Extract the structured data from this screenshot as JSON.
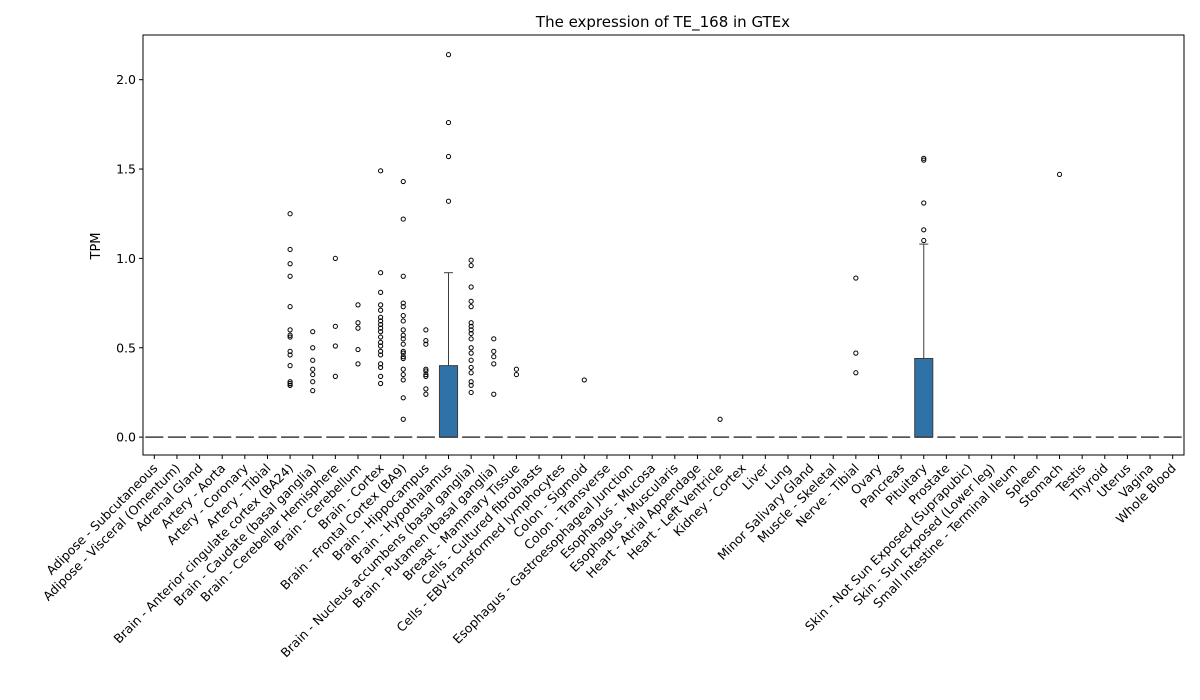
{
  "chart_data": {
    "type": "box",
    "title": "The expression of TE_168 in GTEx",
    "xlabel": "",
    "ylabel": "TPM",
    "ylim": [
      -0.1,
      2.25
    ],
    "yticks": [
      0.0,
      0.5,
      1.0,
      1.5,
      2.0
    ],
    "ytick_labels": [
      "0.0",
      "0.5",
      "1.0",
      "1.5",
      "2.0"
    ],
    "grid": false,
    "box_color": "#2f72a8",
    "categories": [
      "Adipose - Subcutaneous",
      "Adipose - Visceral (Omentum)",
      "Adrenal Gland",
      "Artery - Aorta",
      "Artery - Coronary",
      "Artery - Tibial",
      "Brain - Anterior cingulate cortex (BA24)",
      "Brain - Caudate (basal ganglia)",
      "Brain - Cerebellar Hemisphere",
      "Brain - Cerebellum",
      "Brain - Cortex",
      "Brain - Frontal Cortex (BA9)",
      "Brain - Hippocampus",
      "Brain - Hypothalamus",
      "Brain - Nucleus accumbens (basal ganglia)",
      "Brain - Putamen (basal ganglia)",
      "Breast - Mammary Tissue",
      "Cells - Cultured fibroblasts",
      "Cells - EBV-transformed lymphocytes",
      "Colon - Sigmoid",
      "Colon - Transverse",
      "Esophagus - Gastroesophageal Junction",
      "Esophagus - Mucosa",
      "Esophagus - Muscularis",
      "Heart - Atrial Appendage",
      "Heart - Left Ventricle",
      "Kidney - Cortex",
      "Liver",
      "Lung",
      "Minor Salivary Gland",
      "Muscle - Skeletal",
      "Nerve - Tibial",
      "Ovary",
      "Pancreas",
      "Pituitary",
      "Prostate",
      "Skin - Not Sun Exposed (Suprapubic)",
      "Skin - Sun Exposed (Lower leg)",
      "Small Intestine - Terminal Ileum",
      "Spleen",
      "Stomach",
      "Testis",
      "Thyroid",
      "Uterus",
      "Vagina",
      "Whole Blood"
    ],
    "boxes": [
      {
        "q1": 0,
        "median": 0,
        "q3": 0,
        "whislo": 0,
        "whishi": 0,
        "fliers": []
      },
      {
        "q1": 0,
        "median": 0,
        "q3": 0,
        "whislo": 0,
        "whishi": 0,
        "fliers": []
      },
      {
        "q1": 0,
        "median": 0,
        "q3": 0,
        "whislo": 0,
        "whishi": 0,
        "fliers": []
      },
      {
        "q1": 0,
        "median": 0,
        "q3": 0,
        "whislo": 0,
        "whishi": 0,
        "fliers": []
      },
      {
        "q1": 0,
        "median": 0,
        "q3": 0,
        "whislo": 0,
        "whishi": 0,
        "fliers": []
      },
      {
        "q1": 0,
        "median": 0,
        "q3": 0,
        "whislo": 0,
        "whishi": 0,
        "fliers": []
      },
      {
        "q1": 0,
        "median": 0,
        "q3": 0,
        "whislo": 0,
        "whishi": 0,
        "fliers": [
          1.25,
          1.05,
          0.97,
          0.9,
          0.73,
          0.6,
          0.57,
          0.56,
          0.48,
          0.46,
          0.4,
          0.31,
          0.3,
          0.29,
          0.29
        ]
      },
      {
        "q1": 0,
        "median": 0,
        "q3": 0,
        "whislo": 0,
        "whishi": 0,
        "fliers": [
          0.59,
          0.5,
          0.43,
          0.38,
          0.35,
          0.31,
          0.26
        ]
      },
      {
        "q1": 0,
        "median": 0,
        "q3": 0,
        "whislo": 0,
        "whishi": 0,
        "fliers": [
          1.0,
          0.62,
          0.51,
          0.34
        ]
      },
      {
        "q1": 0,
        "median": 0,
        "q3": 0,
        "whislo": 0,
        "whishi": 0,
        "fliers": [
          0.74,
          0.64,
          0.61,
          0.49,
          0.41
        ]
      },
      {
        "q1": 0,
        "median": 0,
        "q3": 0,
        "whislo": 0,
        "whishi": 0,
        "fliers": [
          1.49,
          0.92,
          0.81,
          0.74,
          0.71,
          0.67,
          0.65,
          0.63,
          0.61,
          0.59,
          0.56,
          0.53,
          0.51,
          0.48,
          0.46,
          0.41,
          0.39,
          0.34,
          0.3
        ]
      },
      {
        "q1": 0,
        "median": 0,
        "q3": 0,
        "whislo": 0,
        "whishi": 0,
        "fliers": [
          1.43,
          1.22,
          0.9,
          0.75,
          0.73,
          0.68,
          0.65,
          0.6,
          0.57,
          0.55,
          0.52,
          0.48,
          0.47,
          0.45,
          0.44,
          0.38,
          0.35,
          0.32,
          0.22,
          0.1
        ]
      },
      {
        "q1": 0,
        "median": 0,
        "q3": 0,
        "whislo": 0,
        "whishi": 0,
        "fliers": [
          0.6,
          0.54,
          0.52,
          0.38,
          0.37,
          0.35,
          0.34,
          0.27,
          0.24
        ]
      },
      {
        "q1": 0,
        "median": 0,
        "q3": 0.4,
        "whislo": 0,
        "whishi": 0.92,
        "fliers": [
          2.14,
          1.76,
          1.57,
          1.32
        ]
      },
      {
        "q1": 0,
        "median": 0,
        "q3": 0,
        "whislo": 0,
        "whishi": 0,
        "fliers": [
          0.99,
          0.96,
          0.84,
          0.76,
          0.73,
          0.64,
          0.62,
          0.6,
          0.58,
          0.55,
          0.5,
          0.47,
          0.43,
          0.39,
          0.36,
          0.31,
          0.29,
          0.25
        ]
      },
      {
        "q1": 0,
        "median": 0,
        "q3": 0,
        "whislo": 0,
        "whishi": 0,
        "fliers": [
          0.55,
          0.48,
          0.45,
          0.41,
          0.24
        ]
      },
      {
        "q1": 0,
        "median": 0,
        "q3": 0,
        "whislo": 0,
        "whishi": 0,
        "fliers": [
          0.38,
          0.35
        ]
      },
      {
        "q1": 0,
        "median": 0,
        "q3": 0,
        "whislo": 0,
        "whishi": 0,
        "fliers": []
      },
      {
        "q1": 0,
        "median": 0,
        "q3": 0,
        "whislo": 0,
        "whishi": 0,
        "fliers": []
      },
      {
        "q1": 0,
        "median": 0,
        "q3": 0,
        "whislo": 0,
        "whishi": 0,
        "fliers": [
          0.32
        ]
      },
      {
        "q1": 0,
        "median": 0,
        "q3": 0,
        "whislo": 0,
        "whishi": 0,
        "fliers": []
      },
      {
        "q1": 0,
        "median": 0,
        "q3": 0,
        "whislo": 0,
        "whishi": 0,
        "fliers": []
      },
      {
        "q1": 0,
        "median": 0,
        "q3": 0,
        "whislo": 0,
        "whishi": 0,
        "fliers": []
      },
      {
        "q1": 0,
        "median": 0,
        "q3": 0,
        "whislo": 0,
        "whishi": 0,
        "fliers": []
      },
      {
        "q1": 0,
        "median": 0,
        "q3": 0,
        "whislo": 0,
        "whishi": 0,
        "fliers": []
      },
      {
        "q1": 0,
        "median": 0,
        "q3": 0,
        "whislo": 0,
        "whishi": 0,
        "fliers": [
          0.1
        ]
      },
      {
        "q1": 0,
        "median": 0,
        "q3": 0,
        "whislo": 0,
        "whishi": 0,
        "fliers": []
      },
      {
        "q1": 0,
        "median": 0,
        "q3": 0,
        "whislo": 0,
        "whishi": 0,
        "fliers": []
      },
      {
        "q1": 0,
        "median": 0,
        "q3": 0,
        "whislo": 0,
        "whishi": 0,
        "fliers": []
      },
      {
        "q1": 0,
        "median": 0,
        "q3": 0,
        "whislo": 0,
        "whishi": 0,
        "fliers": []
      },
      {
        "q1": 0,
        "median": 0,
        "q3": 0,
        "whislo": 0,
        "whishi": 0,
        "fliers": []
      },
      {
        "q1": 0,
        "median": 0,
        "q3": 0,
        "whislo": 0,
        "whishi": 0,
        "fliers": [
          0.89,
          0.47,
          0.36
        ]
      },
      {
        "q1": 0,
        "median": 0,
        "q3": 0,
        "whislo": 0,
        "whishi": 0,
        "fliers": []
      },
      {
        "q1": 0,
        "median": 0,
        "q3": 0,
        "whislo": 0,
        "whishi": 0,
        "fliers": []
      },
      {
        "q1": 0,
        "median": 0,
        "q3": 0.44,
        "whislo": 0,
        "whishi": 1.08,
        "fliers": [
          1.56,
          1.55,
          1.31,
          1.16,
          1.1
        ]
      },
      {
        "q1": 0,
        "median": 0,
        "q3": 0,
        "whislo": 0,
        "whishi": 0,
        "fliers": []
      },
      {
        "q1": 0,
        "median": 0,
        "q3": 0,
        "whislo": 0,
        "whishi": 0,
        "fliers": []
      },
      {
        "q1": 0,
        "median": 0,
        "q3": 0,
        "whislo": 0,
        "whishi": 0,
        "fliers": []
      },
      {
        "q1": 0,
        "median": 0,
        "q3": 0,
        "whislo": 0,
        "whishi": 0,
        "fliers": []
      },
      {
        "q1": 0,
        "median": 0,
        "q3": 0,
        "whislo": 0,
        "whishi": 0,
        "fliers": []
      },
      {
        "q1": 0,
        "median": 0,
        "q3": 0,
        "whislo": 0,
        "whishi": 0,
        "fliers": [
          1.47
        ]
      },
      {
        "q1": 0,
        "median": 0,
        "q3": 0,
        "whislo": 0,
        "whishi": 0,
        "fliers": []
      },
      {
        "q1": 0,
        "median": 0,
        "q3": 0,
        "whislo": 0,
        "whishi": 0,
        "fliers": []
      },
      {
        "q1": 0,
        "median": 0,
        "q3": 0,
        "whislo": 0,
        "whishi": 0,
        "fliers": []
      },
      {
        "q1": 0,
        "median": 0,
        "q3": 0,
        "whislo": 0,
        "whishi": 0,
        "fliers": []
      },
      {
        "q1": 0,
        "median": 0,
        "q3": 0,
        "whislo": 0,
        "whishi": 0,
        "fliers": []
      }
    ]
  }
}
